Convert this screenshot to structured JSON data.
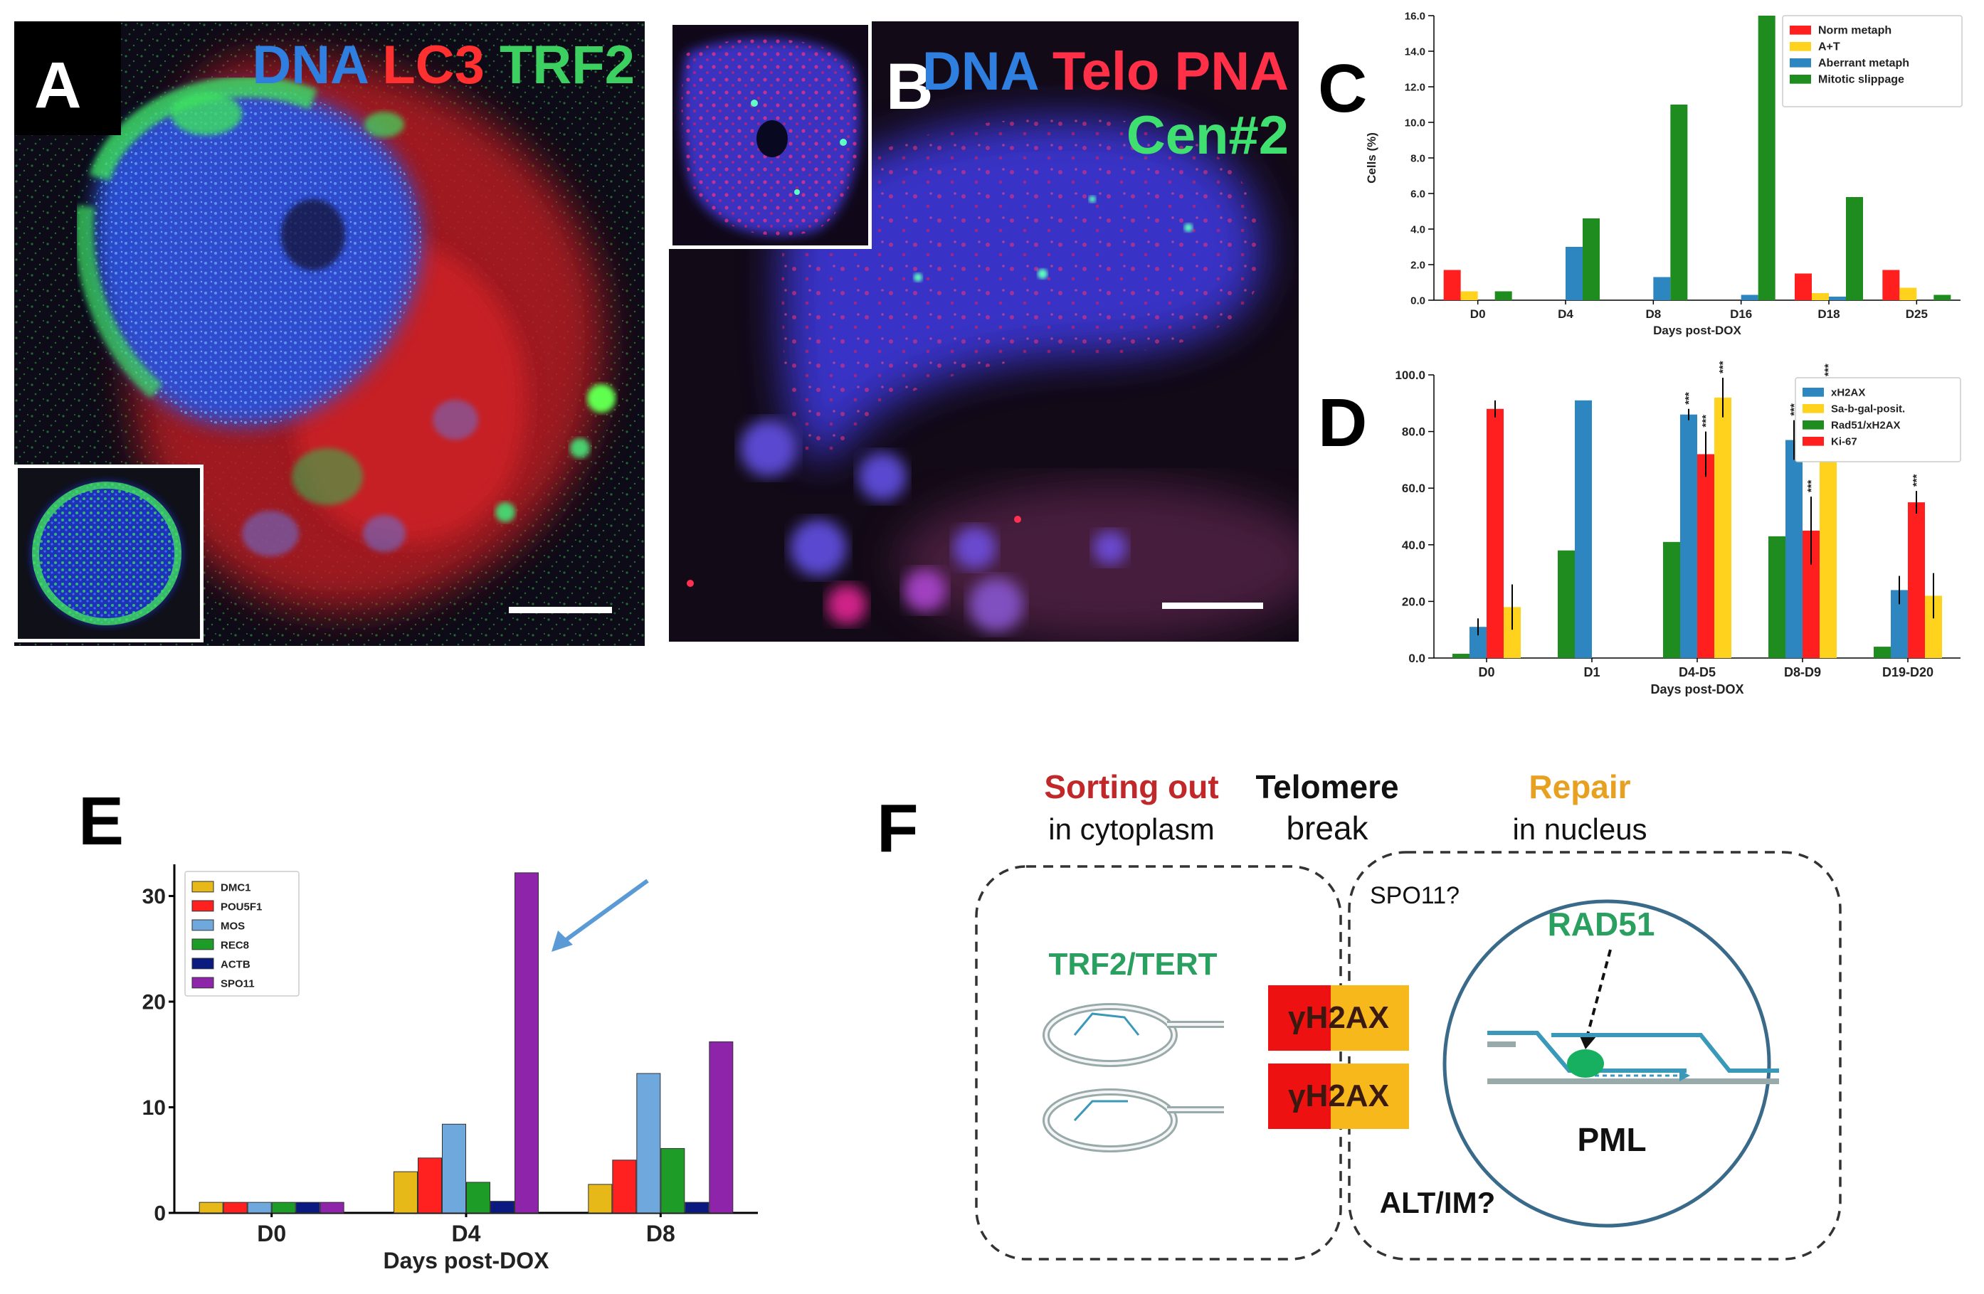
{
  "panel_letters": {
    "a": "A",
    "b": "B",
    "c": "C",
    "d": "D",
    "e": "E",
    "f": "F"
  },
  "panelA": {
    "labels": [
      {
        "text": "DNA",
        "color": "#2f7fe0"
      },
      {
        "text": "LC3",
        "color": "#ff3030"
      },
      {
        "text": "TRF2",
        "color": "#3cd060"
      }
    ]
  },
  "panelB": {
    "labels": [
      {
        "text": "DNA",
        "color": "#2f7fe0"
      },
      {
        "text": "Telo PNA",
        "color": "#ff3048"
      },
      {
        "text": "Cen#2",
        "color": "#40e070"
      }
    ]
  },
  "chart_data": [
    {
      "id": "C",
      "type": "bar",
      "xlabel": "Days post-DOX",
      "ylabel": "Cells (%)",
      "categories": [
        "D0",
        "D4",
        "D8",
        "D16",
        "D18",
        "D25"
      ],
      "ylim": [
        0,
        16.0
      ],
      "yticks": [
        "0.0",
        "2.0",
        "4.0",
        "6.0",
        "8.0",
        "10.0",
        "12.0",
        "14.0",
        "16.0"
      ],
      "legend_position": "top-right",
      "series": [
        {
          "name": "Norm metaph",
          "color": "#ff1f1f",
          "values": [
            1.7,
            0,
            0,
            0,
            1.5,
            1.7
          ]
        },
        {
          "name": "A+T",
          "color": "#ffd21e",
          "values": [
            0.5,
            0,
            0,
            0,
            0.4,
            0.7
          ]
        },
        {
          "name": "Aberrant metaph",
          "color": "#2e86c1",
          "values": [
            0,
            3.0,
            1.3,
            0.3,
            0.2,
            0
          ]
        },
        {
          "name": "Mitotic slippage",
          "color": "#1e8c1e",
          "values": [
            0.5,
            4.6,
            11.0,
            16.0,
            5.8,
            0.3
          ]
        }
      ]
    },
    {
      "id": "D",
      "type": "bar",
      "xlabel": "Days post-DOX",
      "ylabel": "",
      "categories": [
        "D0",
        "D1",
        "D4-D5",
        "D8-D9",
        "D19-D20"
      ],
      "ylim": [
        0,
        100
      ],
      "yticks": [
        "0.0",
        "20.0",
        "40.0",
        "60.0",
        "80.0",
        "100.0"
      ],
      "legend_position": "top-right",
      "series": [
        {
          "name": "Rad51/xH2AX",
          "color": "#1e8c1e",
          "values": [
            1.5,
            38,
            41,
            43,
            4
          ],
          "errors": [
            0,
            0,
            0,
            0,
            0
          ]
        },
        {
          "name": "xH2AX",
          "color": "#2e86c1",
          "values": [
            11,
            91,
            86,
            77,
            24
          ],
          "errors": [
            3,
            0,
            2,
            7,
            5
          ]
        },
        {
          "name": "Ki-67",
          "color": "#ff1f1f",
          "values": [
            88,
            0,
            72,
            45,
            55
          ],
          "errors": [
            3,
            0,
            8,
            12,
            4
          ]
        },
        {
          "name": "Sa-b-gal-posit.",
          "color": "#ffd21e",
          "values": [
            18,
            0,
            92,
            92,
            22
          ],
          "errors": [
            8,
            0,
            7,
            6,
            8
          ]
        }
      ],
      "legend_order": [
        "xH2AX",
        "Sa-b-gal-posit.",
        "Rad51/xH2AX",
        "Ki-67"
      ],
      "significance": [
        {
          "category": "D4-D5",
          "series": "xH2AX",
          "text": "***"
        },
        {
          "category": "D4-D5",
          "series": "Ki-67",
          "text": "***"
        },
        {
          "category": "D4-D5",
          "series": "Sa-b-gal-posit.",
          "text": "***"
        },
        {
          "category": "D8-D9",
          "series": "xH2AX",
          "text": "***"
        },
        {
          "category": "D8-D9",
          "series": "Ki-67",
          "text": "***"
        },
        {
          "category": "D8-D9",
          "series": "Sa-b-gal-posit.",
          "text": "***"
        },
        {
          "category": "D19-D20",
          "series": "Ki-67",
          "text": "***"
        }
      ]
    },
    {
      "id": "E",
      "type": "bar",
      "xlabel": "Days post-DOX",
      "ylabel": "",
      "categories": [
        "D0",
        "D4",
        "D8"
      ],
      "ylim": [
        0,
        33
      ],
      "yticks": [
        "0",
        "10",
        "20",
        "30"
      ],
      "legend_position": "top-left",
      "series": [
        {
          "name": "DMC1",
          "color": "#e6b818",
          "values": [
            1,
            3.9,
            2.7
          ]
        },
        {
          "name": "POU5F1",
          "color": "#ff2020",
          "values": [
            1,
            5.2,
            5.0
          ]
        },
        {
          "name": "MOS",
          "color": "#6fa8dc",
          "values": [
            1,
            8.4,
            13.2
          ]
        },
        {
          "name": "REC8",
          "color": "#1e9c28",
          "values": [
            1,
            2.9,
            6.1
          ]
        },
        {
          "name": "ACTB",
          "color": "#0a1a80",
          "values": [
            1,
            1.1,
            1.0
          ]
        },
        {
          "name": "SPO11",
          "color": "#8e24aa",
          "values": [
            1,
            32.2,
            16.2
          ]
        }
      ]
    }
  ],
  "panelF": {
    "sorting_out": "Sorting  out",
    "in_cytoplasm": "in cytoplasm",
    "telomere": "Telomere",
    "break": "break",
    "repair": "Repair",
    "in_nucleus": "in nucleus",
    "spo11": "SPO11?",
    "trf2_tert": "TRF2/TERT",
    "rad51": "RAD51",
    "yh2ax_1": "γH2AX",
    "yh2ax_2": "γH2AX",
    "pml": "PML",
    "alt_im": "ALT/IM?",
    "colors": {
      "red_title": "#c0282a",
      "orange_title": "#e8a020",
      "green_label": "#2aa060",
      "yh2ax_red": "#ee1111",
      "yh2ax_orange": "#f7b81c"
    }
  }
}
